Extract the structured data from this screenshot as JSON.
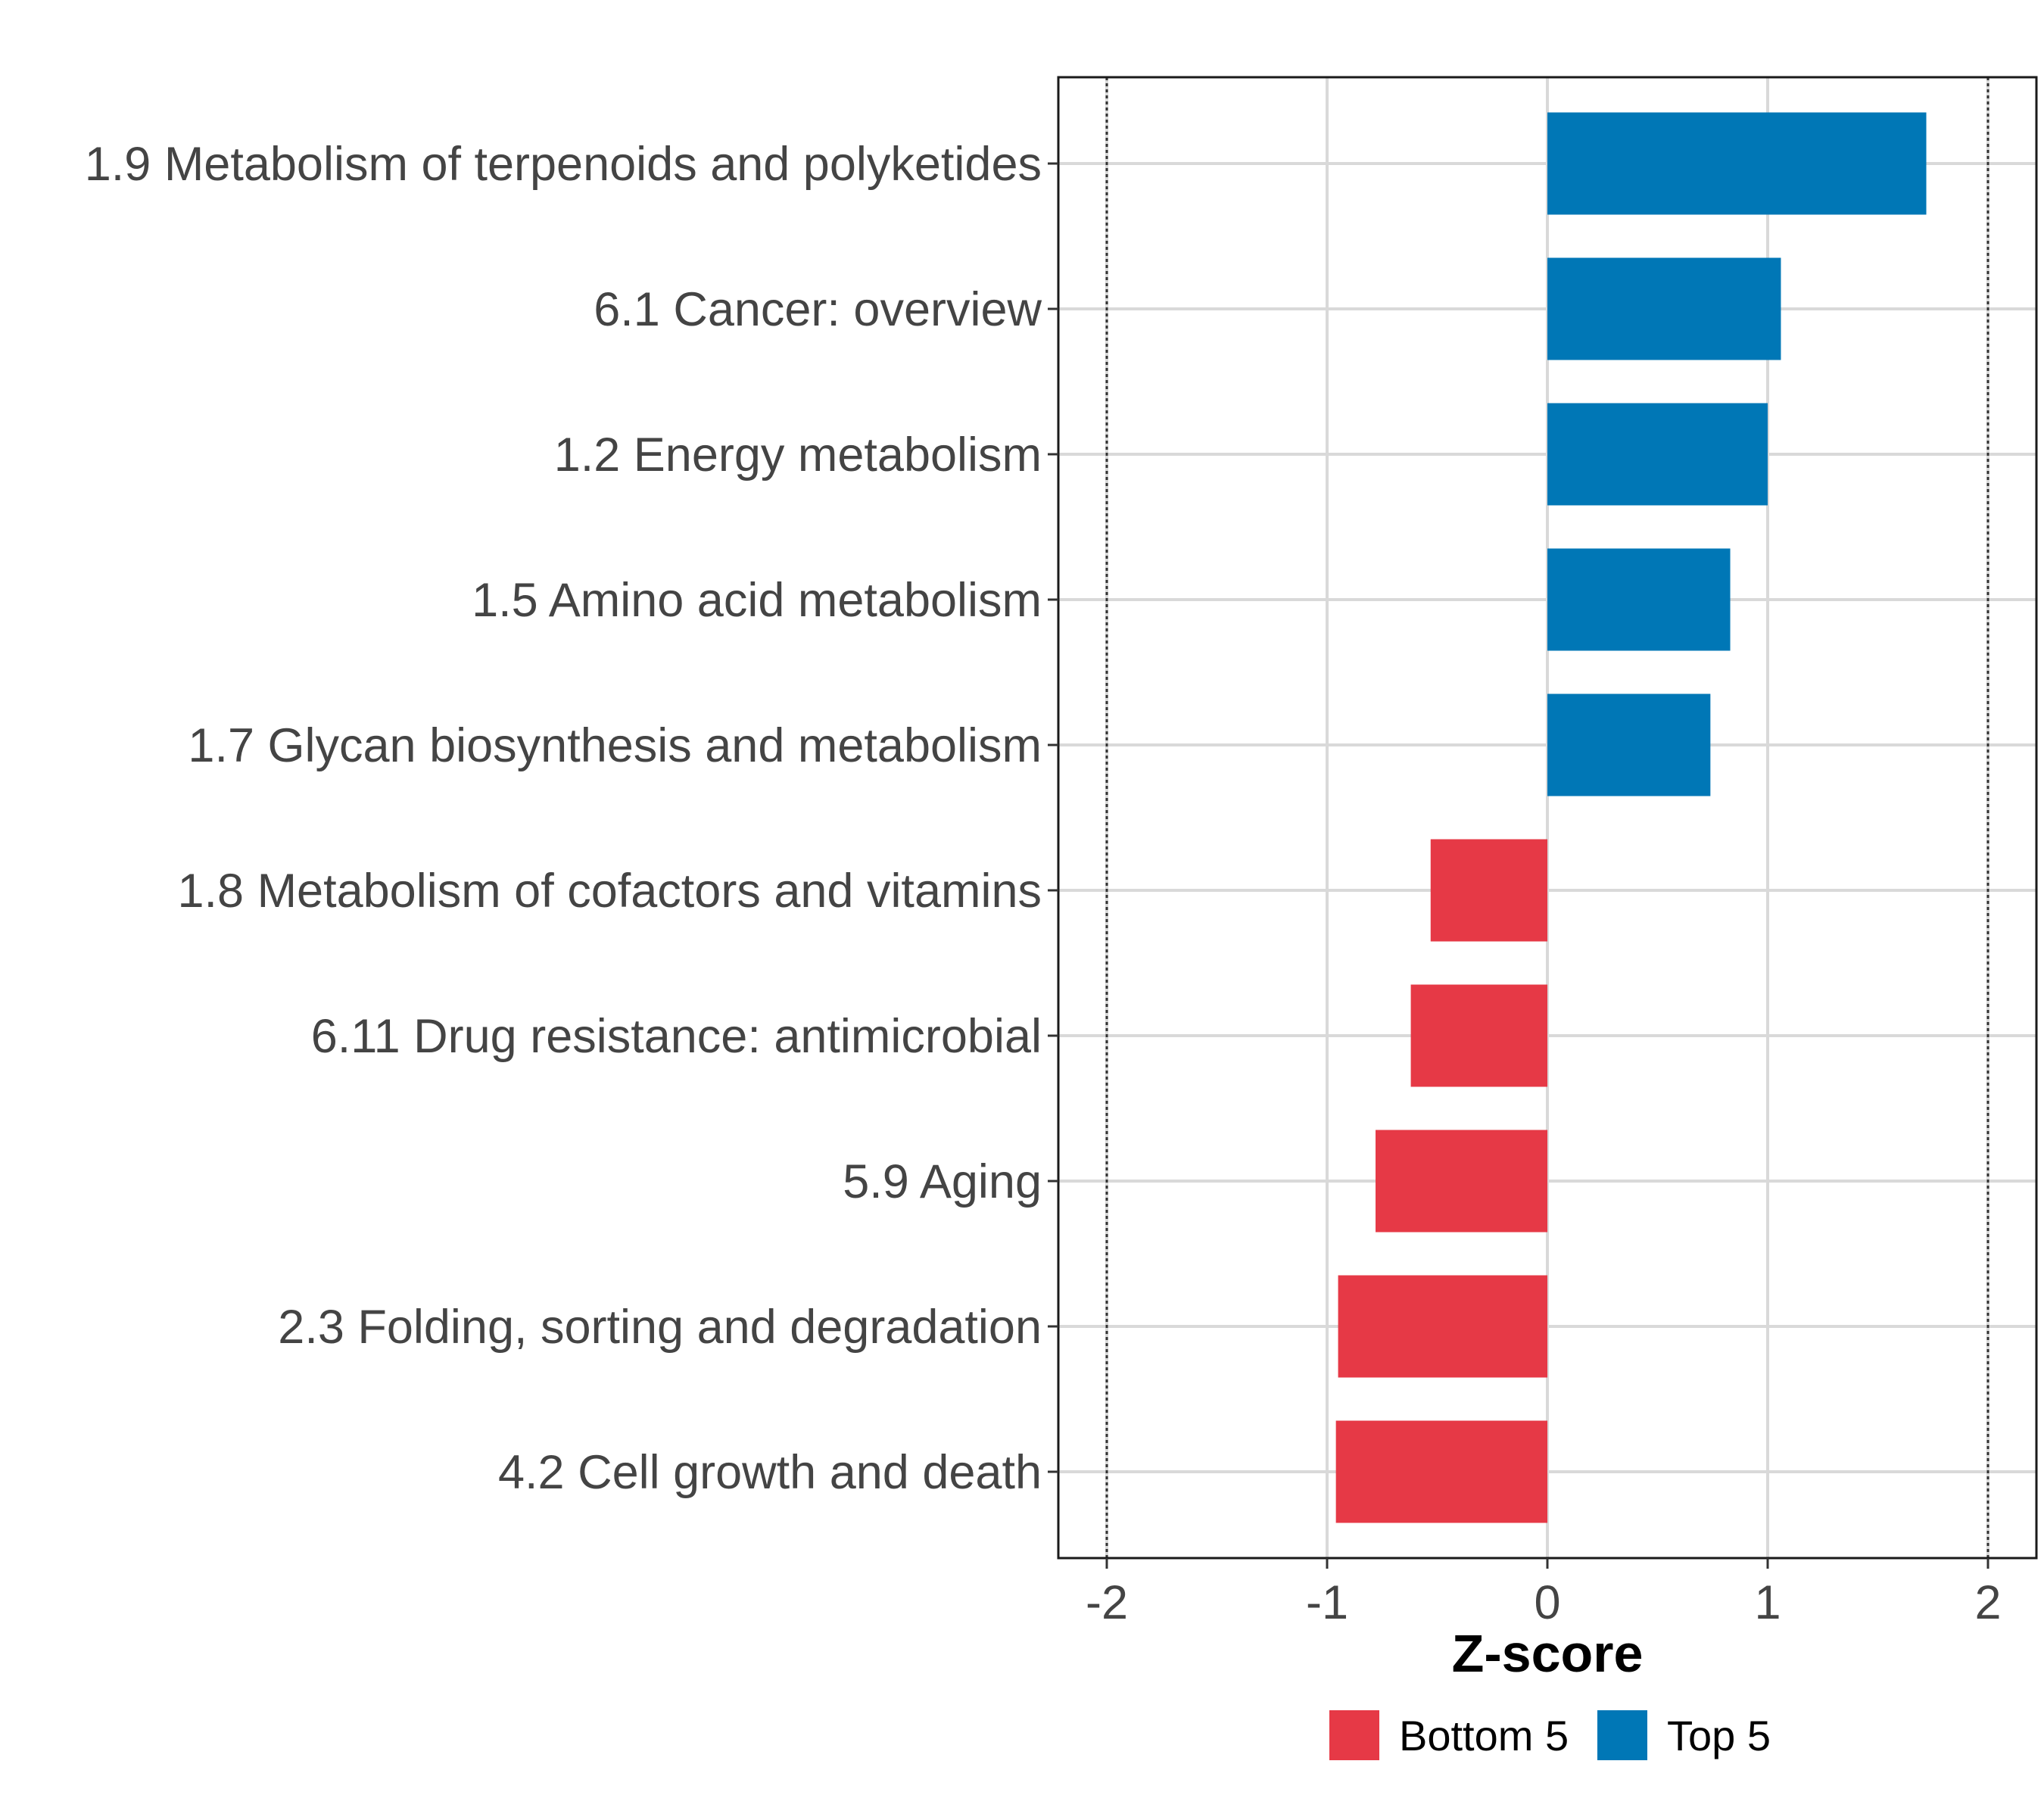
{
  "chart_data": {
    "type": "bar",
    "orientation": "horizontal",
    "title": "",
    "xlabel": "Z-score",
    "ylabel": "",
    "xlim": [
      -2.2,
      2.2
    ],
    "xticks": [
      -2,
      -1,
      0,
      1,
      2
    ],
    "xtick_labels": [
      "-2",
      "-1",
      "0",
      "1",
      "2"
    ],
    "reference_lines": [
      -2,
      2
    ],
    "grid": true,
    "categories": [
      "1.9 Metabolism of terpenoids and polyketides",
      "6.1 Cancer: overview",
      "1.2 Energy metabolism",
      "1.5 Amino acid metabolism",
      "1.7 Glycan biosynthesis and metabolism",
      "1.8 Metabolism of cofactors and vitamins",
      "6.11 Drug resistance: antimicrobial",
      "5.9 Aging",
      "2.3 Folding, sorting and degradation",
      "4.2 Cell growth and death"
    ],
    "values": [
      1.72,
      1.06,
      1.0,
      0.83,
      0.74,
      -0.53,
      -0.62,
      -0.78,
      -0.95,
      -0.96
    ],
    "groups": [
      "Top 5",
      "Top 5",
      "Top 5",
      "Top 5",
      "Top 5",
      "Bottom 5",
      "Bottom 5",
      "Bottom 5",
      "Bottom 5",
      "Bottom 5"
    ],
    "legend": {
      "position": "bottom",
      "entries": [
        {
          "label": "Bottom 5",
          "color": "#e63946"
        },
        {
          "label": "Top 5",
          "color": "#0077b6"
        }
      ]
    }
  }
}
